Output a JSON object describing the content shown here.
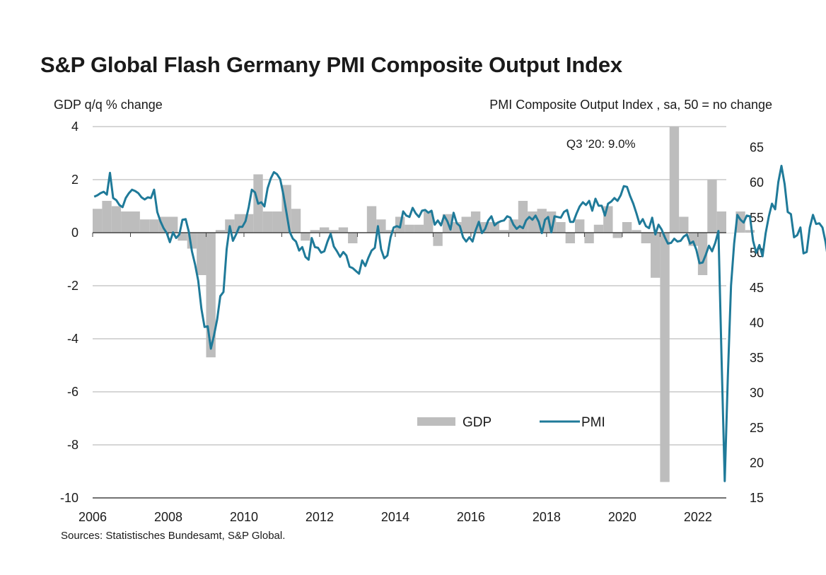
{
  "chart_data": {
    "type": "bar+line",
    "title": "S&P Global Flash Germany PMI Composite Output Index",
    "ylabel_left": "GDP q/q % change",
    "ylabel_right": "PMI Composite  Output  Index  , sa, 50 = no change",
    "ylim_left": [
      -10,
      4
    ],
    "yticks_left": [
      4,
      2,
      0,
      -2,
      -4,
      -6,
      -8,
      -10
    ],
    "ylim_right": [
      15,
      68
    ],
    "yticks_right": [
      65,
      60,
      55,
      50,
      45,
      40,
      35,
      30,
      25,
      20,
      15
    ],
    "xlim": [
      2006.0,
      2022.75
    ],
    "xticks": [
      2006,
      2008,
      2010,
      2012,
      2014,
      2016,
      2018,
      2020,
      2022
    ],
    "grid": "horizontal",
    "legend": "bottom-right, inside",
    "legend_labels": {
      "gdp": "GDP",
      "pmi": "PMI"
    },
    "annotation": "Q3 '20: 9.0%",
    "source": "Sources: Statistisches Bundesamt, S&P Global.",
    "colors": {
      "gdp": "#bdbdbd",
      "pmi": "#1f7a99",
      "grid": "#c8c8c8",
      "axis": "#444444"
    },
    "gdp": {
      "start": 2006.0,
      "values": [
        0.9,
        1.2,
        1.0,
        0.8,
        0.8,
        0.5,
        0.5,
        0.6,
        0.6,
        -0.3,
        -0.6,
        -1.6,
        -4.7,
        0.1,
        0.5,
        0.7,
        0.7,
        2.2,
        0.8,
        0.8,
        1.8,
        0.9,
        -0.3,
        0.1,
        0.2,
        0.1,
        0.2,
        -0.4,
        0.0,
        1.0,
        0.5,
        0.1,
        0.6,
        0.3,
        0.3,
        0.8,
        -0.5,
        0.7,
        0.4,
        0.6,
        0.8,
        0.4,
        0.4,
        0.1,
        0.5,
        1.2,
        0.8,
        0.9,
        0.8,
        0.4,
        -0.4,
        0.5,
        -0.4,
        0.3,
        1.0,
        -0.2,
        0.4,
        0.1,
        -0.4,
        -1.7,
        -9.4,
        9.0,
        0.6,
        -0.5,
        -1.6,
        2.0,
        0.8,
        0.0,
        0.8,
        0.1
      ]
    },
    "pmi": {
      "start": 2006.0,
      "values": [
        58.0,
        58.2,
        58.5,
        58.7,
        58.3,
        61.4,
        57.8,
        57.5,
        56.8,
        56.5,
        57.8,
        58.5,
        59.0,
        58.8,
        58.5,
        57.9,
        57.6,
        57.9,
        57.8,
        59.0,
        55.8,
        54.5,
        53.5,
        52.8,
        51.5,
        52.9,
        52.1,
        52.6,
        54.7,
        54.8,
        53.0,
        50.2,
        48.3,
        46.0,
        42.0,
        39.4,
        39.5,
        36.3,
        38.2,
        40.5,
        43.8,
        44.4,
        50.5,
        53.8,
        51.7,
        52.6,
        53.7,
        53.7,
        54.5,
        56.5,
        59.0,
        58.6,
        57.0,
        57.2,
        56.6,
        59.2,
        60.6,
        61.5,
        61.2,
        60.5,
        58.3,
        55.7,
        53.0,
        52.0,
        51.6,
        50.3,
        50.8,
        49.4,
        49.0,
        52.1,
        50.8,
        50.7,
        50.0,
        50.2,
        51.6,
        52.7,
        50.9,
        50.2,
        49.4,
        50.1,
        49.6,
        48.0,
        47.8,
        47.4,
        47.0,
        48.9,
        48.1,
        49.3,
        50.3,
        50.7,
        53.8,
        50.5,
        49.2,
        49.6,
        52.2,
        53.6,
        53.8,
        53.6,
        55.9,
        55.3,
        55.1,
        56.4,
        55.6,
        55.1,
        56.0,
        56.1,
        55.7,
        56.0,
        54.0,
        54.6,
        53.9,
        55.3,
        54.5,
        53.3,
        55.7,
        54.2,
        53.8,
        52.2,
        51.6,
        52.2,
        51.6,
        53.2,
        54.4,
        52.8,
        53.4,
        54.6,
        55.2,
        53.9,
        54.3,
        54.5,
        54.6,
        55.2,
        55.0,
        54.0,
        53.4,
        53.8,
        53.5,
        54.6,
        55.1,
        54.7,
        55.3,
        54.4,
        52.8,
        54.7,
        55.1,
        52.9,
        55.2,
        55.1,
        55.0,
        55.8,
        56.1,
        54.4,
        54.4,
        55.6,
        56.6,
        57.2,
        56.8,
        57.4,
        56.0,
        57.7,
        56.7,
        56.7,
        55.3,
        57.0,
        57.3,
        57.8,
        57.4,
        58.2,
        59.5,
        59.4,
        58.1,
        57.0,
        55.6,
        54.1,
        54.8,
        53.8,
        53.5,
        55.0,
        52.6,
        54.0,
        53.3,
        52.2,
        51.3,
        51.4,
        52.0,
        51.6,
        51.7,
        52.3,
        52.6,
        51.3,
        51.6,
        50.4,
        48.5,
        48.6,
        49.7,
        51.0,
        50.2,
        51.4,
        53.1,
        35.0,
        17.4,
        32.3,
        45.3,
        51.3,
        55.4,
        54.7,
        54.3,
        55.3,
        55.2,
        51.7,
        50.0,
        51.1,
        49.5,
        52.8,
        55.2,
        57.0,
        56.2,
        60.1,
        62.4,
        59.8,
        55.8,
        55.5,
        52.2,
        52.5,
        53.6,
        49.9,
        50.1,
        53.6,
        55.4,
        54.1,
        54.2,
        53.6,
        51.5,
        48.4,
        47.5
      ]
    }
  }
}
